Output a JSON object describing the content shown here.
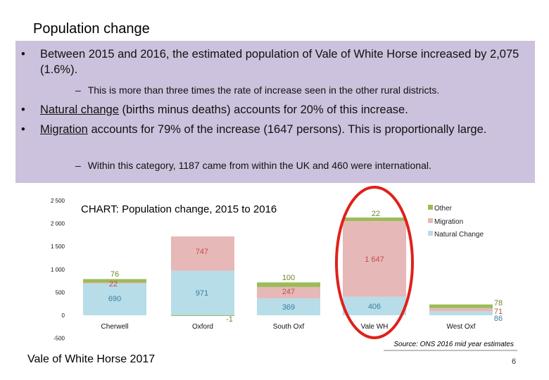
{
  "slide": {
    "title": "Population change",
    "bullets": [
      {
        "text": "Between 2015 and 2016, the estimated population of Vale of White Horse increased by 2,075 (1.6%).",
        "sub": "This is more than three times the rate of increase seen in the other rural districts."
      },
      {
        "underlined": "Natural change",
        "rest": " (births minus deaths) accounts for 20% of this increase."
      },
      {
        "underlined": "Migration",
        "rest": " accounts for 79% of the increase (1647 persons).  This is proportionally large.",
        "sub": "Within this category, 1187 came from within the UK and 460 were international."
      }
    ],
    "bullet_glyph": "•",
    "dash_glyph": "–",
    "footer": "Vale of White Horse 2017",
    "page_number": "6",
    "source": "Source: ONS 2016 mid year estimates",
    "highlight_color": "#e0201b",
    "panel_color": "#ccc2dd"
  },
  "chart_data": {
    "type": "bar",
    "stacked": true,
    "title": "CHART: Population change, 2015 to 2016",
    "categories": [
      "Cherwell",
      "Oxford",
      "South Oxf",
      "Vale WH",
      "West Oxf"
    ],
    "series": [
      {
        "name": "Natural Change",
        "color": "#b7dde8",
        "values": [
          690,
          971,
          369,
          406,
          86
        ],
        "labels": [
          "690",
          "971",
          "369",
          "406",
          "86"
        ]
      },
      {
        "name": "Migration",
        "color": "#e6b8b7",
        "values": [
          22,
          747,
          247,
          1647,
          71
        ],
        "labels": [
          "22",
          "747",
          "247",
          "1 647",
          "71"
        ]
      },
      {
        "name": "Other",
        "color": "#9bbb59",
        "values": [
          76,
          -1,
          100,
          22,
          78
        ],
        "labels": [
          "76",
          "-1",
          "100",
          "22",
          "78"
        ]
      }
    ],
    "yticks": [
      "2 500",
      "2 000",
      "1 500",
      "1 000",
      "500",
      "0",
      "-500"
    ],
    "ylim": [
      -500,
      2500
    ],
    "legend_order": [
      "Other",
      "Migration",
      "Natural Change"
    ],
    "legend_position": "top-right",
    "highlighted_category": "Vale WH"
  }
}
